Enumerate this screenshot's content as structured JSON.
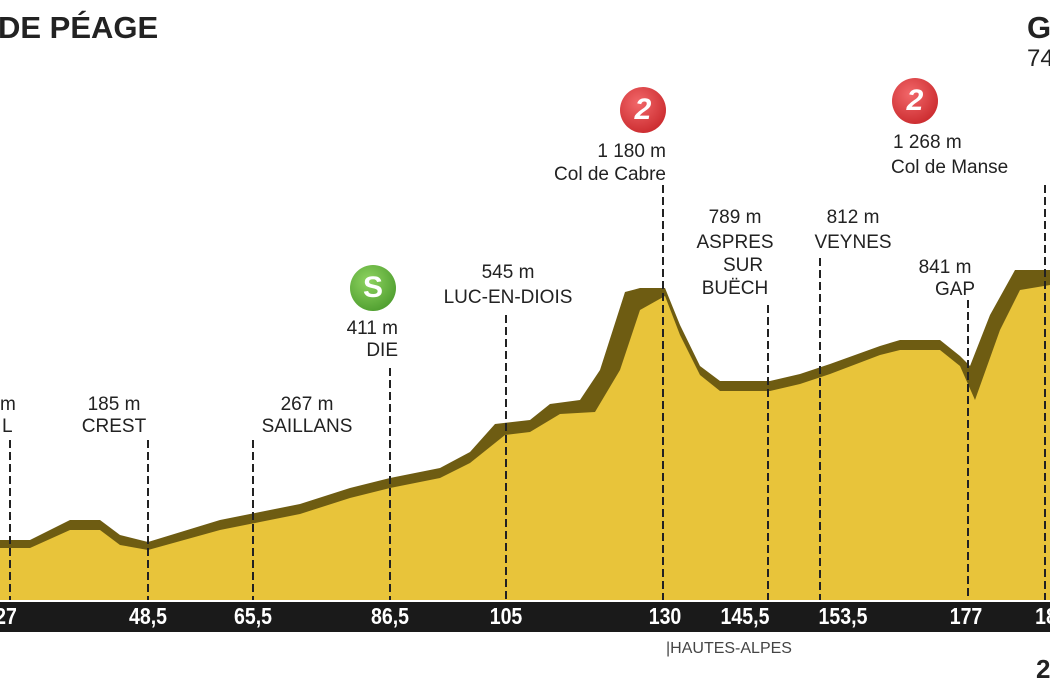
{
  "start_title": "DE PÉAGE",
  "finish_title": "G",
  "finish_altitude": "74",
  "region_label": "|HAUTES-ALPES",
  "corner_text": "2",
  "colors": {
    "terrain": "#e8c43a",
    "edge": "#6e5c12",
    "axis": "#1a1a1a",
    "cat2": "#d7262a",
    "sprint": "#4aa02c"
  },
  "points": [
    {
      "alt": "m",
      "name": "L"
    },
    {
      "alt": "185 m",
      "name": "CREST"
    },
    {
      "alt": "267 m",
      "name": "SAILLANS"
    },
    {
      "alt": "411 m",
      "name": "DIE",
      "badge": "S",
      "badge_icon": "sprint-icon"
    },
    {
      "alt": "545 m",
      "name": "LUC-EN-DIOIS"
    },
    {
      "alt": "1 180 m",
      "name": "Col de Cabre",
      "badge": "2",
      "badge_icon": "category-2-climb-icon"
    },
    {
      "alt": "789 m",
      "name": "ASPRES",
      "name2": "SUR",
      "name3": "BUËCH"
    },
    {
      "alt": "812 m",
      "name": "VEYNES"
    },
    {
      "alt": "841 m",
      "name": "GAP"
    },
    {
      "alt": "1 268 m",
      "name": "Col de Manse",
      "badge": "2",
      "badge_icon": "category-2-climb-icon"
    }
  ],
  "distances": [
    "27",
    "48,5",
    "65,5",
    "86,5",
    "105",
    "130",
    "145,5",
    "153,5",
    "177",
    "18"
  ]
}
